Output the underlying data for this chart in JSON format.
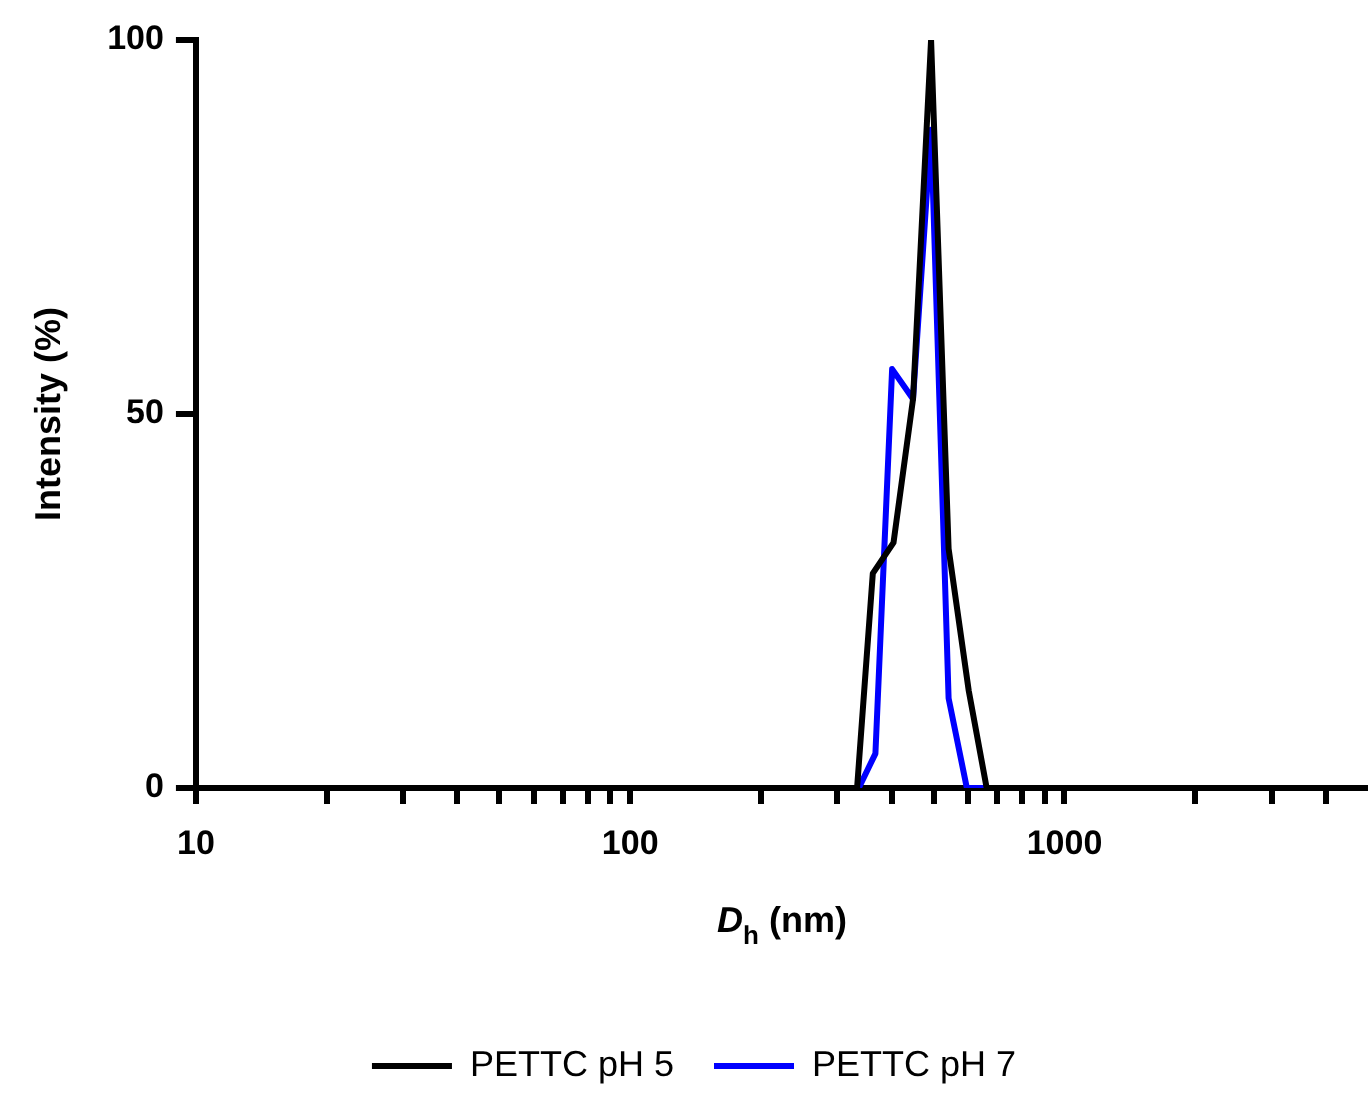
{
  "chart_data": {
    "type": "line",
    "xlabel": "D$_{h}$ (nm)",
    "ylabel": "Intensity (%)",
    "log": "x",
    "grid": false,
    "legend": "bottom",
    "marker": "none",
    "line_style": "solid",
    "xlim": [
      10,
      5000
    ],
    "ylim": [
      0,
      100
    ],
    "xticks": [
      10,
      {
        "value": 20,
        "label": null
      },
      {
        "value": 30,
        "label": null
      },
      {
        "value": 40,
        "label": null
      },
      {
        "value": 50,
        "label": null
      },
      {
        "value": 60,
        "label": null
      },
      {
        "value": 70,
        "label": null
      },
      {
        "value": 80,
        "label": null
      },
      {
        "value": 90,
        "label": null
      },
      100,
      {
        "value": 200,
        "label": null
      },
      {
        "value": 300,
        "label": null
      },
      {
        "value": 400,
        "label": null
      },
      {
        "value": 500,
        "label": null
      },
      {
        "value": 600,
        "label": null
      },
      {
        "value": 700,
        "label": null
      },
      {
        "value": 800,
        "label": null
      },
      {
        "value": 900,
        "label": null
      },
      1000,
      {
        "value": 2000,
        "label": null
      },
      {
        "value": 3000,
        "label": null
      },
      {
        "value": 4000,
        "label": null
      }
    ],
    "yticks": [
      0,
      50,
      100
    ],
    "series": [
      {
        "name": "PETTC pH 5",
        "color": "#000000",
        "x": [
          10,
          333,
          362,
          404,
          448,
          493,
          541,
          602,
          662,
          5000
        ],
        "values": [
          0,
          0,
          28.7,
          32.8,
          52,
          100,
          32,
          13,
          0,
          0
        ]
      },
      {
        "name": "PETTC pH 7",
        "color": "#0000ff",
        "x": [
          10,
          336,
          367,
          401,
          448,
          493,
          541,
          596,
          5000
        ],
        "values": [
          0,
          0,
          4.6,
          56,
          52,
          88,
          12,
          0,
          0
        ]
      }
    ]
  }
}
